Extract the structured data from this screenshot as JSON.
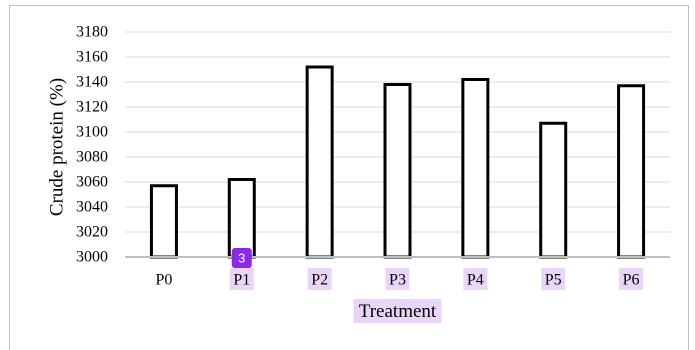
{
  "chart_data": {
    "type": "bar",
    "categories": [
      "P0",
      "P1",
      "P2",
      "P3",
      "P4",
      "P5",
      "P6"
    ],
    "values": [
      3057,
      3062,
      3152,
      3138,
      3142,
      3107,
      3137
    ],
    "xlabel": "Treatment",
    "ylabel": "Crude protein (%)",
    "ylim": [
      3000,
      3180
    ],
    "yticks": [
      3000,
      3020,
      3040,
      3060,
      3080,
      3100,
      3120,
      3140,
      3160,
      3180
    ],
    "grid": true,
    "highlighted_categories": [
      "P1",
      "P2",
      "P3",
      "P4",
      "P5",
      "P6"
    ],
    "highlight_color": "#e8d5f8"
  },
  "marker": {
    "label": "3",
    "color": "#8a2be2"
  }
}
